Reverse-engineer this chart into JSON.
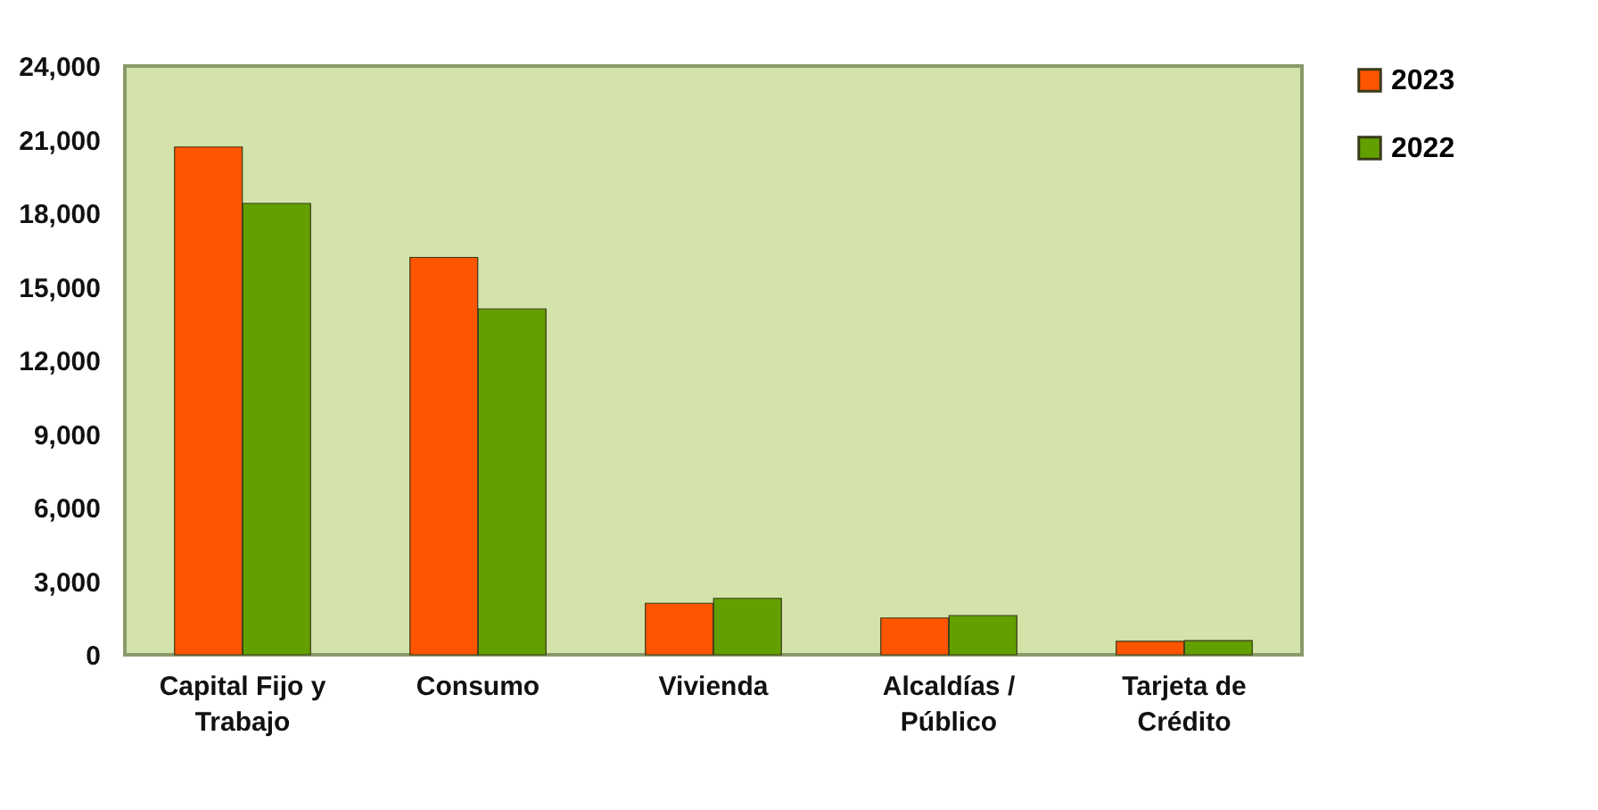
{
  "chart_data": {
    "type": "bar",
    "categories": [
      "Capital Fijo y Trabajo",
      "Consumo",
      "Vivienda",
      "Alcaldías / Público",
      "Tarjeta de Crédito"
    ],
    "series": [
      {
        "name": "2023",
        "color": "#ff5500",
        "values": [
          20700,
          16200,
          2100,
          1500,
          550
        ]
      },
      {
        "name": "2022",
        "color": "#62a000",
        "values": [
          18400,
          14100,
          2300,
          1600,
          580
        ]
      }
    ],
    "ylim": [
      0,
      24000
    ],
    "yticks": [
      0,
      {
        "value": 3000,
        "label": "3,000"
      },
      {
        "value": 6000,
        "label": "6,000"
      },
      {
        "value": 9000,
        "label": "9,000"
      },
      {
        "value": 12000,
        "label": "12,000"
      },
      {
        "value": 15000,
        "label": "15,000"
      },
      {
        "value": 18000,
        "label": "18,000"
      },
      {
        "value": 21000,
        "label": "21,000"
      },
      {
        "value": 24000,
        "label": "24,000"
      }
    ],
    "grid": false,
    "legend": "right"
  }
}
